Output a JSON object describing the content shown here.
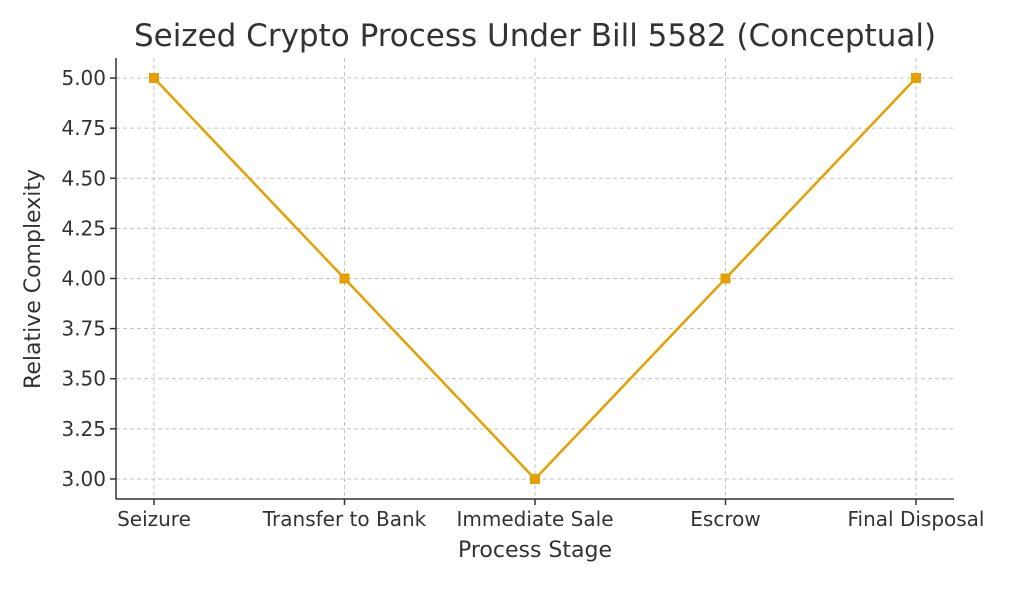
{
  "chart_data": {
    "type": "line",
    "title": "Seized Crypto Process Under Bill 5582 (Conceptual)",
    "xlabel": "Process Stage",
    "ylabel": "Relative Complexity",
    "categories": [
      "Seizure",
      "Transfer to Bank",
      "Immediate Sale",
      "Escrow",
      "Final Disposal"
    ],
    "series": [
      {
        "values": [
          5,
          4,
          3,
          4,
          5
        ],
        "color": "#e69f00",
        "marker": "square"
      }
    ],
    "ylim": [
      2.9,
      5.1
    ],
    "yticks": [
      3.0,
      3.25,
      3.5,
      3.75,
      4.0,
      4.25,
      4.5,
      4.75,
      5.0
    ],
    "ytick_labels": [
      "3.00",
      "3.25",
      "3.50",
      "3.75",
      "4.00",
      "4.25",
      "4.50",
      "4.75",
      "5.00"
    ],
    "grid": true,
    "legend": "none"
  }
}
